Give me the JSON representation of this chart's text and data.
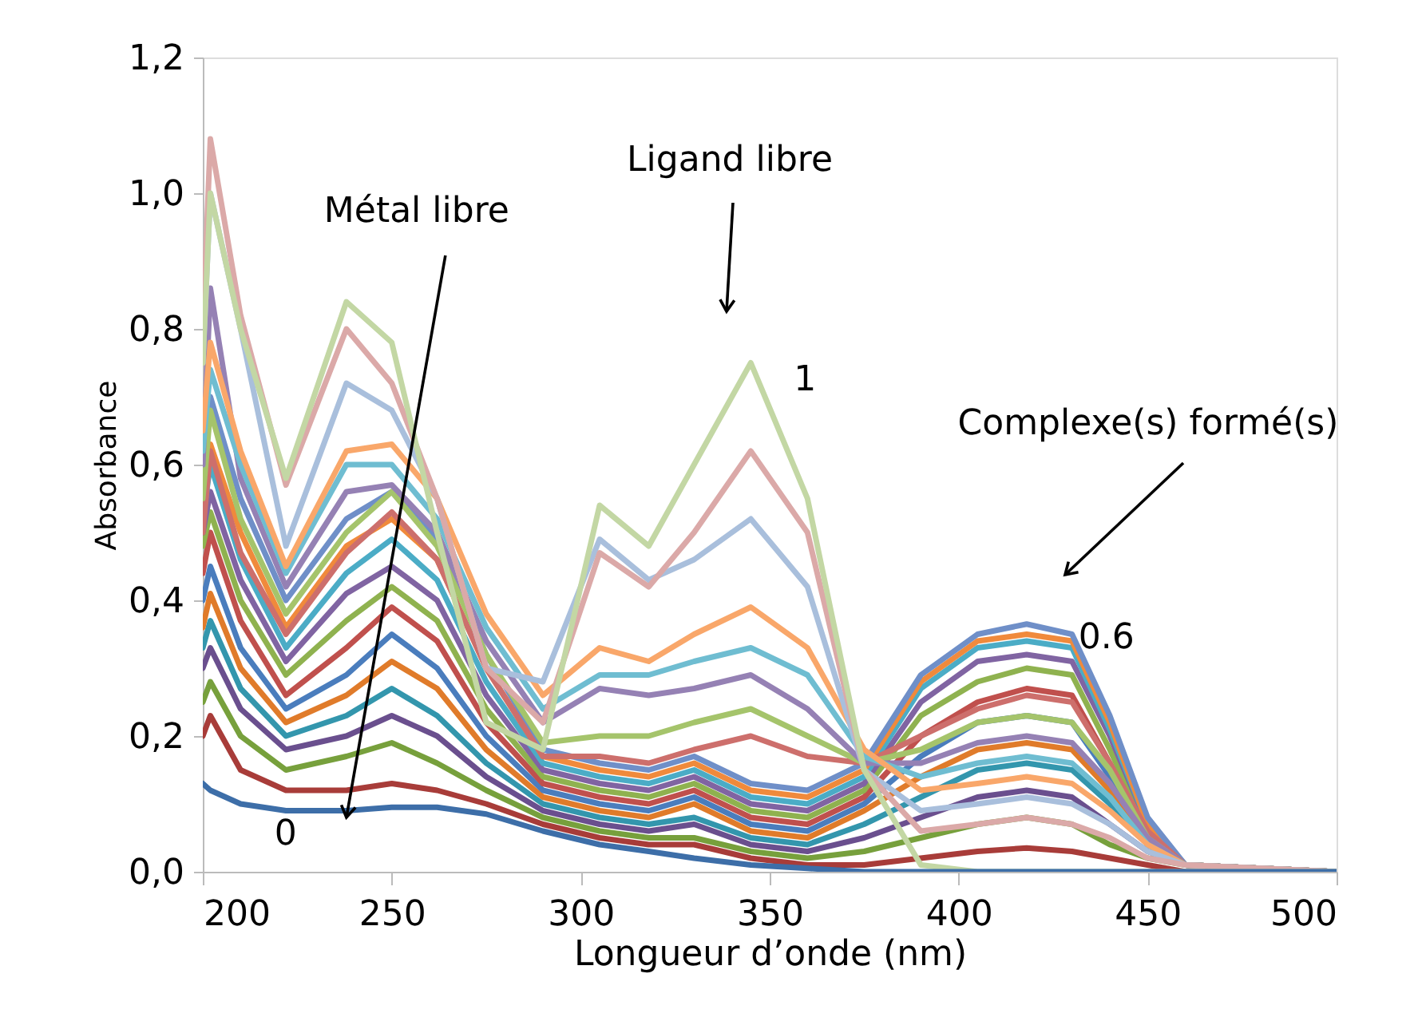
{
  "chart_data": {
    "type": "line",
    "xlabel": "Longueur d’onde (nm)",
    "ylabel": "Absorbance",
    "x": [
      200,
      202,
      210,
      222,
      238,
      250,
      262,
      275,
      290,
      305,
      318,
      330,
      345,
      360,
      375,
      390,
      405,
      418,
      430,
      440,
      450,
      460,
      500
    ],
    "xlim": [
      200,
      500
    ],
    "xticks": [
      200,
      250,
      300,
      350,
      400,
      450,
      500
    ],
    "ylim": [
      0,
      1.2
    ],
    "yticks": [
      {
        "value": 0,
        "label": "0,0"
      },
      {
        "value": 0.2,
        "label": "0,2"
      },
      {
        "value": 0.4,
        "label": "0,4"
      },
      {
        "value": 0.6,
        "label": "0,6"
      },
      {
        "value": 0.8,
        "label": "0,8"
      },
      {
        "value": 1.0,
        "label": "1,0"
      },
      {
        "value": 1.2,
        "label": "1,2"
      }
    ],
    "grid": false,
    "marker": "none",
    "line_style": "solid",
    "series": [
      {
        "color": "#3d6ea8",
        "values": [
          0.13,
          0.12,
          0.1,
          0.09,
          0.09,
          0.095,
          0.095,
          0.085,
          0.06,
          0.04,
          0.03,
          0.02,
          0.01,
          0.005,
          0,
          0,
          0,
          0,
          0,
          0,
          0,
          0,
          0
        ]
      },
      {
        "color": "#a83c39",
        "values": [
          0.2,
          0.23,
          0.15,
          0.12,
          0.12,
          0.13,
          0.12,
          0.1,
          0.07,
          0.05,
          0.04,
          0.04,
          0.02,
          0.01,
          0.01,
          0.02,
          0.03,
          0.035,
          0.03,
          0.02,
          0.01,
          0,
          0
        ]
      },
      {
        "color": "#77a03c",
        "values": [
          0.25,
          0.28,
          0.2,
          0.15,
          0.17,
          0.19,
          0.16,
          0.12,
          0.08,
          0.06,
          0.05,
          0.05,
          0.03,
          0.02,
          0.03,
          0.05,
          0.07,
          0.08,
          0.07,
          0.04,
          0.02,
          0.01,
          0
        ]
      },
      {
        "color": "#6a4f8e",
        "values": [
          0.3,
          0.33,
          0.24,
          0.18,
          0.2,
          0.23,
          0.2,
          0.14,
          0.09,
          0.07,
          0.06,
          0.07,
          0.04,
          0.03,
          0.05,
          0.08,
          0.11,
          0.12,
          0.11,
          0.07,
          0.03,
          0.01,
          0
        ]
      },
      {
        "color": "#3396ad",
        "values": [
          0.33,
          0.37,
          0.27,
          0.2,
          0.23,
          0.27,
          0.23,
          0.16,
          0.1,
          0.08,
          0.07,
          0.08,
          0.05,
          0.04,
          0.07,
          0.11,
          0.15,
          0.16,
          0.15,
          0.1,
          0.04,
          0.01,
          0
        ]
      },
      {
        "color": "#e07b2a",
        "values": [
          0.36,
          0.41,
          0.3,
          0.22,
          0.26,
          0.31,
          0.27,
          0.18,
          0.11,
          0.09,
          0.08,
          0.1,
          0.06,
          0.05,
          0.09,
          0.14,
          0.18,
          0.19,
          0.18,
          0.12,
          0.05,
          0.01,
          0
        ]
      },
      {
        "color": "#4a7dbd",
        "values": [
          0.4,
          0.45,
          0.33,
          0.24,
          0.29,
          0.35,
          0.3,
          0.2,
          0.12,
          0.1,
          0.09,
          0.11,
          0.07,
          0.06,
          0.1,
          0.17,
          0.22,
          0.23,
          0.22,
          0.14,
          0.05,
          0.01,
          0
        ]
      },
      {
        "color": "#c0504d",
        "values": [
          0.44,
          0.5,
          0.37,
          0.26,
          0.33,
          0.39,
          0.34,
          0.22,
          0.13,
          0.11,
          0.1,
          0.12,
          0.08,
          0.07,
          0.11,
          0.2,
          0.25,
          0.27,
          0.26,
          0.16,
          0.06,
          0.01,
          0
        ]
      },
      {
        "color": "#8fb24f",
        "values": [
          0.48,
          0.53,
          0.4,
          0.29,
          0.37,
          0.42,
          0.37,
          0.24,
          0.14,
          0.12,
          0.11,
          0.13,
          0.09,
          0.08,
          0.12,
          0.23,
          0.28,
          0.3,
          0.29,
          0.18,
          0.06,
          0.01,
          0
        ]
      },
      {
        "color": "#8064a2",
        "values": [
          0.5,
          0.56,
          0.43,
          0.31,
          0.41,
          0.45,
          0.4,
          0.26,
          0.15,
          0.13,
          0.12,
          0.14,
          0.1,
          0.09,
          0.13,
          0.25,
          0.31,
          0.32,
          0.31,
          0.2,
          0.07,
          0.01,
          0
        ]
      },
      {
        "color": "#4bacc6",
        "values": [
          0.52,
          0.6,
          0.46,
          0.33,
          0.44,
          0.49,
          0.43,
          0.28,
          0.16,
          0.14,
          0.13,
          0.15,
          0.11,
          0.1,
          0.14,
          0.27,
          0.33,
          0.34,
          0.33,
          0.21,
          0.07,
          0.01,
          0
        ]
      },
      {
        "color": "#f08a3c",
        "values": [
          0.55,
          0.63,
          0.5,
          0.36,
          0.48,
          0.52,
          0.46,
          0.3,
          0.17,
          0.15,
          0.14,
          0.16,
          0.12,
          0.11,
          0.15,
          0.28,
          0.34,
          0.35,
          0.34,
          0.22,
          0.07,
          0.01,
          0
        ]
      },
      {
        "color": "#6f8fc8",
        "values": [
          0.6,
          0.7,
          0.55,
          0.4,
          0.52,
          0.56,
          0.49,
          0.32,
          0.18,
          0.16,
          0.15,
          0.17,
          0.13,
          0.12,
          0.16,
          0.29,
          0.35,
          0.365,
          0.35,
          0.23,
          0.08,
          0.01,
          0
        ]
      },
      {
        "color": "#cd6f6c",
        "values": [
          0.5,
          0.62,
          0.47,
          0.35,
          0.47,
          0.53,
          0.46,
          0.3,
          0.17,
          0.17,
          0.16,
          0.18,
          0.2,
          0.17,
          0.16,
          0.2,
          0.24,
          0.26,
          0.25,
          0.16,
          0.06,
          0.01,
          0
        ]
      },
      {
        "color": "#a5c46b",
        "values": [
          0.55,
          0.68,
          0.52,
          0.38,
          0.5,
          0.56,
          0.48,
          0.32,
          0.19,
          0.2,
          0.2,
          0.22,
          0.24,
          0.2,
          0.16,
          0.18,
          0.22,
          0.23,
          0.22,
          0.15,
          0.05,
          0.01,
          0
        ]
      },
      {
        "color": "#9581b4",
        "values": [
          0.6,
          0.86,
          0.58,
          0.42,
          0.56,
          0.57,
          0.5,
          0.34,
          0.22,
          0.27,
          0.26,
          0.27,
          0.29,
          0.24,
          0.16,
          0.16,
          0.19,
          0.2,
          0.19,
          0.13,
          0.05,
          0.01,
          0
        ]
      },
      {
        "color": "#6fbdd1",
        "values": [
          0.62,
          0.74,
          0.6,
          0.44,
          0.6,
          0.6,
          0.52,
          0.36,
          0.24,
          0.29,
          0.29,
          0.31,
          0.33,
          0.29,
          0.17,
          0.14,
          0.16,
          0.17,
          0.16,
          0.11,
          0.04,
          0.01,
          0
        ]
      },
      {
        "color": "#f9a76a",
        "values": [
          0.65,
          0.78,
          0.62,
          0.45,
          0.62,
          0.63,
          0.55,
          0.38,
          0.26,
          0.33,
          0.31,
          0.35,
          0.39,
          0.33,
          0.18,
          0.12,
          0.13,
          0.14,
          0.13,
          0.09,
          0.04,
          0.01,
          0
        ]
      },
      {
        "color": "#a9bfdc",
        "values": [
          0.75,
          1.0,
          0.8,
          0.48,
          0.72,
          0.68,
          0.55,
          0.3,
          0.28,
          0.49,
          0.43,
          0.46,
          0.52,
          0.42,
          0.15,
          0.09,
          0.1,
          0.11,
          0.1,
          0.07,
          0.03,
          0.01,
          0
        ]
      },
      {
        "color": "#dba9a8",
        "values": [
          0.8,
          1.08,
          0.82,
          0.57,
          0.8,
          0.72,
          0.55,
          0.3,
          0.22,
          0.47,
          0.42,
          0.5,
          0.62,
          0.5,
          0.15,
          0.06,
          0.07,
          0.08,
          0.07,
          0.05,
          0.02,
          0.01,
          0
        ]
      },
      {
        "color": "#c3d7a4",
        "values": [
          0.75,
          1.0,
          0.8,
          0.58,
          0.84,
          0.78,
          0.5,
          0.22,
          0.18,
          0.54,
          0.48,
          0.6,
          0.75,
          0.55,
          0.15,
          0.01,
          0,
          0,
          0,
          0,
          0,
          0,
          0
        ]
      }
    ],
    "annotations": [
      {
        "text": "Métal libre",
        "x": 238,
        "y": 0.08
      },
      "Ligand libre",
      "Complexe(s) formé(s)",
      {
        "text": "0",
        "x": 238,
        "y": 0.09
      },
      {
        "text": "1",
        "x": 345,
        "y": 0.75
      },
      {
        "text": "0.6",
        "x": 418,
        "y": 0.365
      }
    ]
  }
}
